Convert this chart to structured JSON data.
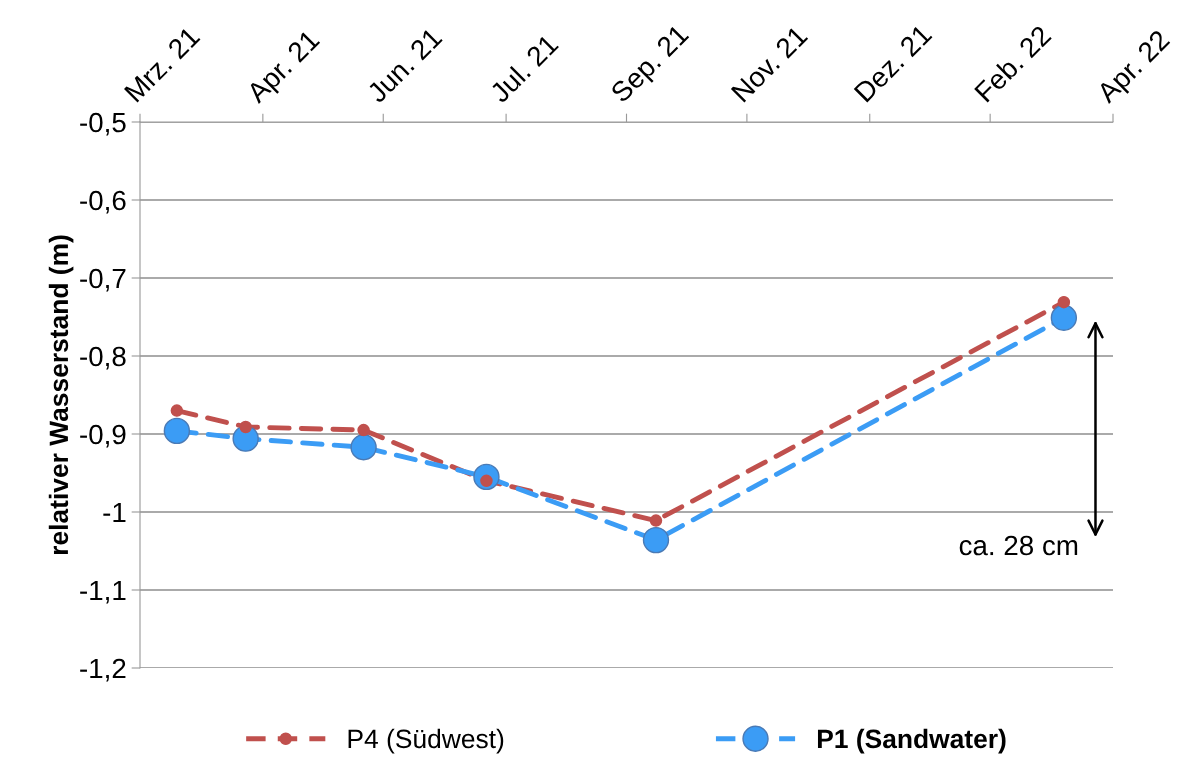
{
  "chart_data": {
    "type": "line",
    "ylabel": "relativer Wasserstand (m)",
    "xlim": [
      "2021-03-01",
      "2022-04-01"
    ],
    "xticks": [
      {
        "value": "2021-03-01",
        "label": "Mrz. 21"
      },
      {
        "value": "2021-04-20",
        "label": "Apr. 21"
      },
      {
        "value": "2021-06-08",
        "label": "Jun. 21"
      },
      {
        "value": "2021-07-28",
        "label": "Jul. 21"
      },
      {
        "value": "2021-09-15",
        "label": "Sep. 21"
      },
      {
        "value": "2021-11-03",
        "label": "Nov. 21"
      },
      {
        "value": "2021-12-23",
        "label": "Dez. 21"
      },
      {
        "value": "2022-02-10",
        "label": "Feb. 22"
      },
      {
        "value": "2022-04-01",
        "label": "Apr. 22"
      }
    ],
    "ylim": [
      -1.2,
      -0.5
    ],
    "yticks": [
      {
        "value": -1.2,
        "label": "-1,2"
      },
      {
        "value": -1.1,
        "label": "-1,1"
      },
      {
        "value": -1.0,
        "label": "-1"
      },
      {
        "value": -0.9,
        "label": "-0,9"
      },
      {
        "value": -0.8,
        "label": "-0,8"
      },
      {
        "value": -0.7,
        "label": "-0,7"
      },
      {
        "value": -0.6,
        "label": "-0,6"
      },
      {
        "value": -0.5,
        "label": "-0,5"
      }
    ],
    "x": [
      "2021-03-16",
      "2021-04-13",
      "2021-05-31",
      "2021-07-20",
      "2021-09-27",
      "2022-03-12"
    ],
    "series": [
      {
        "name": "P4 (Südwest)",
        "color": "#c0504d",
        "values": [
          -0.87,
          -0.891,
          -0.895,
          -0.96,
          -1.011,
          -0.731
        ]
      },
      {
        "name": "P1 (Sandwater)",
        "color": "#3b9cf5",
        "values": [
          -0.896,
          -0.906,
          -0.917,
          -0.955,
          -1.036,
          -0.751
        ]
      }
    ],
    "marker": "circle",
    "line_style": "dashed",
    "grid": "y",
    "legend": "bottom",
    "annotations": [
      "ca. 28 cm"
    ]
  }
}
